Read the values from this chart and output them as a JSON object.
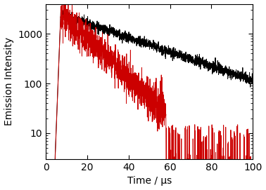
{
  "title": "",
  "xlabel": "Time / μs",
  "ylabel": "Emission Intensity",
  "xlim": [
    0,
    100
  ],
  "ylim_log": [
    3,
    4000
  ],
  "yticks": [
    10,
    100,
    1000
  ],
  "xticks": [
    0,
    20,
    40,
    60,
    80,
    100
  ],
  "black_peak_time": 7.2,
  "black_peak_val": 2500,
  "black_decay_tau": 30.0,
  "black_noise_amp": 0.12,
  "black_baseline": 3.5,
  "red_peak_time": 7.2,
  "red_peak_val": 2500,
  "red_decay_tau": 11.0,
  "red_noise_amp": 0.4,
  "red_baseline": 3.0,
  "red_noise_floor_cutoff": 58,
  "rise_start": 4.5,
  "black_color": "#000000",
  "red_color": "#cc0000",
  "linewidth": 0.7,
  "figsize": [
    3.78,
    2.71
  ],
  "dpi": 100,
  "seed": 7
}
